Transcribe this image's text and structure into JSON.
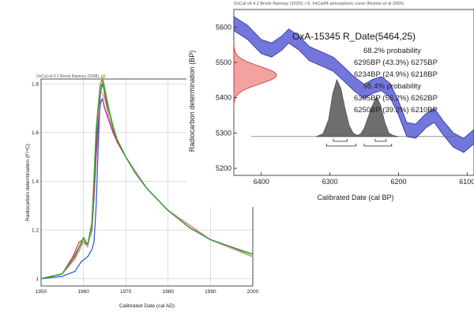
{
  "chart_data": [
    {
      "type": "line",
      "header": "OxCal v4.0.1 Bronk Ramsey (2008); r:5",
      "xlabel": "Calibrated Date (cal AD)",
      "ylabel": "Radiocarbon determination (F¹⁴C)",
      "xlim": [
        1950,
        2000
      ],
      "ylim": [
        0.97,
        1.82
      ],
      "x_ticks": [
        1950,
        1960,
        1970,
        1980,
        1990,
        2000
      ],
      "y_ticks": [
        1,
        1.2,
        1.4,
        1.6,
        1.8
      ],
      "grid": true,
      "legend_position": "top-right",
      "series": [
        {
          "color": "#2f62c9",
          "x": [
            1950,
            1955,
            1958,
            1959.5,
            1961,
            1962,
            1962.5,
            1963,
            1963.5,
            1964,
            1964.6,
            1965,
            1966,
            1967,
            1968,
            1970,
            1972,
            1975,
            1980,
            1985,
            1990,
            1995,
            2000
          ],
          "values": [
            1.0,
            1.01,
            1.03,
            1.07,
            1.09,
            1.12,
            1.15,
            1.3,
            1.55,
            1.76,
            1.81,
            1.78,
            1.7,
            1.62,
            1.57,
            1.5,
            1.44,
            1.37,
            1.28,
            1.21,
            1.16,
            1.13,
            1.1
          ]
        },
        {
          "color": "#9b2fb0",
          "x": [
            1950,
            1955,
            1957.5,
            1959,
            1960,
            1961,
            1962,
            1962.5,
            1963,
            1963.5,
            1964,
            1964.5,
            1965,
            1966,
            1967,
            1968,
            1970,
            1975,
            1980,
            1990,
            2000
          ],
          "values": [
            1.0,
            1.02,
            1.08,
            1.13,
            1.15,
            1.14,
            1.2,
            1.33,
            1.5,
            1.63,
            1.72,
            1.74,
            1.7,
            1.65,
            1.6,
            1.56,
            1.5,
            1.37,
            1.28,
            1.16,
            1.09
          ]
        },
        {
          "color": "#d93a3a",
          "x": [
            1950,
            1955,
            1957.5,
            1959,
            1960,
            1961,
            1962,
            1962.5,
            1963,
            1963.5,
            1964,
            1964.5,
            1965,
            1966,
            1967,
            1968,
            1970,
            1975,
            1980,
            1990,
            2000
          ],
          "values": [
            1.0,
            1.02,
            1.09,
            1.15,
            1.16,
            1.14,
            1.2,
            1.36,
            1.55,
            1.7,
            1.8,
            1.82,
            1.76,
            1.66,
            1.61,
            1.56,
            1.5,
            1.37,
            1.28,
            1.16,
            1.1
          ]
        },
        {
          "color": "#e88a9b",
          "x": [
            1950,
            1955,
            1958,
            1960,
            1961,
            1962,
            1962.5,
            1963,
            1964,
            1965,
            1966,
            1968,
            1970,
            1975,
            1980,
            1990,
            2000
          ],
          "values": [
            1.0,
            1.02,
            1.08,
            1.15,
            1.13,
            1.22,
            1.4,
            1.6,
            1.78,
            1.74,
            1.66,
            1.57,
            1.5,
            1.37,
            1.28,
            1.16,
            1.09
          ]
        },
        {
          "color": "#7dc243",
          "x": [
            1950,
            1955,
            1958,
            1960,
            1961,
            1962,
            1962.5,
            1963,
            1963.5,
            1964,
            1964.5,
            1965,
            1966,
            1967,
            1968,
            1970,
            1972,
            1975,
            1980,
            1985,
            1990,
            1995,
            2000
          ],
          "values": [
            1.0,
            1.02,
            1.09,
            1.16,
            1.14,
            1.22,
            1.42,
            1.62,
            1.72,
            1.8,
            1.83,
            1.79,
            1.7,
            1.63,
            1.57,
            1.5,
            1.44,
            1.37,
            1.28,
            1.21,
            1.16,
            1.13,
            1.09
          ]
        },
        {
          "color": "#2e9e3e",
          "x": [
            1950,
            1955,
            1958,
            1960,
            1961,
            1962,
            1962.5,
            1963,
            1963.5,
            1964,
            1964.5,
            1965,
            1966,
            1967,
            1968,
            1970,
            1972,
            1975,
            1980,
            1985,
            1990,
            1995,
            2000
          ],
          "values": [
            1.0,
            1.02,
            1.09,
            1.17,
            1.14,
            1.23,
            1.4,
            1.6,
            1.7,
            1.79,
            1.8,
            1.77,
            1.69,
            1.62,
            1.57,
            1.5,
            1.44,
            1.37,
            1.28,
            1.21,
            1.16,
            1.13,
            1.1
          ]
        }
      ]
    },
    {
      "type": "area",
      "header": "OxCal v4.4.2 Bronk Ramsey (2020); r:5; IntCal04 atmospheric curve (Reimer et al 2004)",
      "title": "OxA-15345 R_Date(5464,25)",
      "xlabel": "Calibrated Date (cal BP)",
      "ylabel": "Radiocarbon determination (BP)",
      "xlim": [
        6440,
        6090
      ],
      "ylim": [
        5180,
        5650
      ],
      "x_ticks": [
        6400,
        6300,
        6200,
        6100
      ],
      "y_ticks": [
        5200,
        5300,
        5400,
        5500,
        5600
      ],
      "annotations": [
        "68.2% probability",
        "6295BP (43.3%) 6275BP",
        "6234BP (24.9%) 6218BP",
        "95.4% probability",
        "6305BP (56.2%) 6262BP",
        "6250BP (39.2%) 6210BP"
      ],
      "calibration_curve": {
        "color": "#5b5fd6",
        "x": [
          6440,
          6420,
          6400,
          6385,
          6370,
          6360,
          6345,
          6330,
          6310,
          6295,
          6280,
          6265,
          6250,
          6238,
          6225,
          6212,
          6200,
          6188,
          6175,
          6160,
          6148,
          6135,
          6120,
          6105,
          6090
        ],
        "values": [
          5610,
          5585,
          5545,
          5535,
          5555,
          5575,
          5555,
          5525,
          5508,
          5495,
          5468,
          5440,
          5418,
          5432,
          5440,
          5420,
          5370,
          5310,
          5305,
          5335,
          5350,
          5315,
          5280,
          5265,
          5290
        ],
        "band_halfwidth": 20
      },
      "measurement": {
        "mean": 5464,
        "sigma": 25,
        "color": "#f08a8a"
      },
      "posterior": {
        "color": "#6e6e6e",
        "x": [
          6320,
          6310,
          6302,
          6296,
          6290,
          6284,
          6278,
          6272,
          6266,
          6260,
          6255,
          6250,
          6244,
          6238,
          6232,
          6226,
          6220,
          6214,
          6208,
          6200
        ],
        "values": [
          0,
          0.05,
          0.3,
          0.75,
          1.0,
          0.85,
          0.5,
          0.2,
          0.06,
          0.02,
          0.05,
          0.15,
          0.35,
          0.55,
          0.7,
          0.55,
          0.25,
          0.06,
          0.02,
          0
        ]
      },
      "ranges_68": [
        [
          6295,
          6275
        ],
        [
          6234,
          6218
        ]
      ],
      "ranges_95": [
        [
          6305,
          6262
        ],
        [
          6250,
          6210
        ]
      ]
    }
  ]
}
